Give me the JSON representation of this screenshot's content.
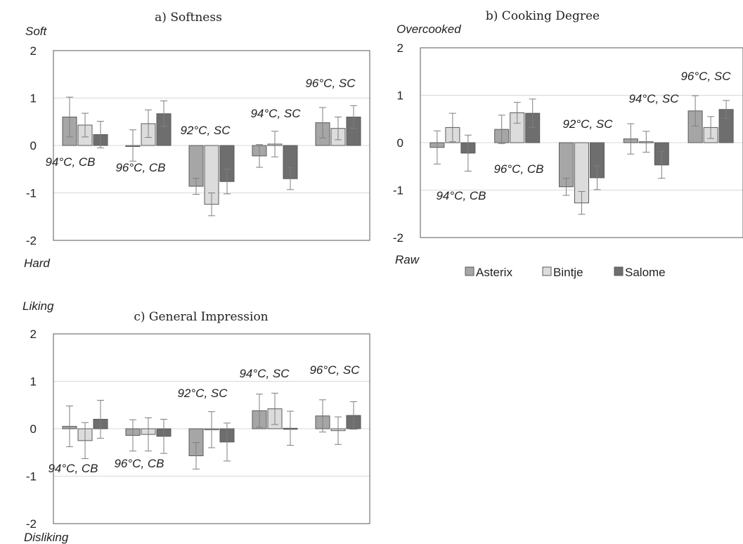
{
  "colors": {
    "Asterix": "#a6a6a6",
    "Bintje": "#dcdcdc",
    "Salome": "#6e6e6e",
    "edge": "#5a5a5a",
    "grid": "#d9d9d9",
    "err": "#7f7f7f"
  },
  "legend": {
    "items": [
      "Asterix",
      "Bintje",
      "Salome"
    ],
    "placement": "below panel b"
  },
  "chart_data": [
    {
      "type": "bar",
      "title": "a) Softness",
      "top_label": "Soft",
      "bottom_label": "Hard",
      "ylim": [
        -2,
        2
      ],
      "yticks": [
        2,
        1,
        0,
        -1,
        -2
      ],
      "grid": true,
      "categories": [
        "94°C, CB",
        "96°C, CB",
        "92°C, SC",
        "94°C, SC",
        "96°C, SC"
      ],
      "series": [
        {
          "name": "Asterix",
          "values": [
            0.6,
            0.0,
            -0.86,
            -0.22,
            0.48
          ],
          "errors": [
            0.42,
            0.33,
            0.17,
            0.24,
            0.32
          ]
        },
        {
          "name": "Bintje",
          "values": [
            0.43,
            0.46,
            -1.24,
            0.03,
            0.36
          ],
          "errors": [
            0.25,
            0.29,
            0.24,
            0.27,
            0.24
          ]
        },
        {
          "name": "Salome",
          "values": [
            0.23,
            0.67,
            -0.76,
            -0.7,
            0.6
          ],
          "errors": [
            0.28,
            0.27,
            0.26,
            0.23,
            0.24
          ]
        }
      ]
    },
    {
      "type": "bar",
      "title": "b) Cooking Degree",
      "top_label": "Overcooked",
      "bottom_label": "Raw",
      "ylim": [
        -2,
        2
      ],
      "yticks": [
        2,
        1,
        0,
        -1,
        -2
      ],
      "grid": true,
      "categories": [
        "94°C, CB",
        "96°C, CB",
        "92°C, SC",
        "94°C, SC",
        "96°C, SC"
      ],
      "series": [
        {
          "name": "Asterix",
          "values": [
            -0.1,
            0.28,
            -0.93,
            0.08,
            0.67
          ],
          "errors": [
            0.35,
            0.3,
            0.18,
            0.32,
            0.32
          ]
        },
        {
          "name": "Bintje",
          "values": [
            0.32,
            0.63,
            -1.27,
            0.02,
            0.32
          ],
          "errors": [
            0.3,
            0.22,
            0.24,
            0.22,
            0.23
          ]
        },
        {
          "name": "Salome",
          "values": [
            -0.22,
            0.62,
            -0.74,
            -0.47,
            0.7
          ],
          "errors": [
            0.38,
            0.3,
            0.25,
            0.28,
            0.19
          ]
        }
      ]
    },
    {
      "type": "bar",
      "title": "c) General Impression",
      "top_label": "Liking",
      "bottom_label": "Disliking",
      "ylim": [
        -2,
        2
      ],
      "yticks": [
        2,
        1,
        0,
        -1,
        -2
      ],
      "grid": true,
      "categories": [
        "94°C, CB",
        "96°C, CB",
        "92°C, SC",
        "94°C, SC",
        "96°C, SC"
      ],
      "series": [
        {
          "name": "Asterix",
          "values": [
            0.05,
            -0.14,
            -0.57,
            0.38,
            0.27
          ],
          "errors": [
            0.43,
            0.33,
            0.28,
            0.35,
            0.34
          ]
        },
        {
          "name": "Bintje",
          "values": [
            -0.25,
            -0.12,
            -0.02,
            0.42,
            -0.04
          ],
          "errors": [
            0.38,
            0.35,
            0.38,
            0.33,
            0.29
          ]
        },
        {
          "name": "Salome",
          "values": [
            0.2,
            -0.16,
            -0.28,
            0.01,
            0.28
          ],
          "errors": [
            0.4,
            0.36,
            0.4,
            0.36,
            0.29
          ]
        }
      ]
    }
  ]
}
